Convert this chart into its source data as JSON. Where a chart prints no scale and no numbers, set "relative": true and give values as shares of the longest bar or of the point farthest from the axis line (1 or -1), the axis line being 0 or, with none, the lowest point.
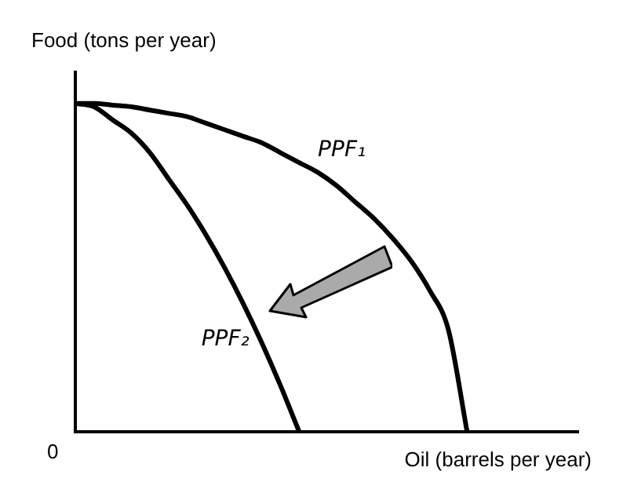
{
  "chart_data": {
    "type": "line",
    "relative": true,
    "xlabel": "Oil (barrels per year)",
    "ylabel": "Food (tons per year)",
    "annotations": [
      "0"
    ],
    "legend": false,
    "marker": "none",
    "line_style": "solid",
    "categories": [
      null,
      null,
      null,
      null,
      null,
      null,
      null,
      null,
      null,
      null,
      null,
      null,
      null,
      null,
      null,
      null,
      null,
      null,
      null,
      null,
      null,
      null,
      null,
      null,
      null,
      null,
      null,
      null
    ],
    "series": [
      {
        "name": "PPF₁",
        "color": "#000000",
        "values": [
          1,
          1,
          0.995,
          0.99,
          0.98,
          0.97,
          0.96,
          0.94,
          0.92,
          0.9,
          0.88,
          0.85,
          0.82,
          0.79,
          0.75,
          0.7,
          0.65,
          0.59,
          0.52,
          0.43,
          0.31,
          0,
          null,
          null,
          null,
          null,
          null,
          null
        ]
      },
      {
        "name": "PPF₂",
        "color": "#000000",
        "values": [
          1,
          0.99,
          0.95,
          0.91,
          0.85,
          0.77,
          0.69,
          0.6,
          0.5,
          0.39,
          0.27,
          0.14,
          0,
          null,
          null,
          null,
          null,
          null,
          null,
          null,
          null,
          null,
          null,
          null,
          null,
          null,
          null,
          null
        ]
      }
    ]
  }
}
